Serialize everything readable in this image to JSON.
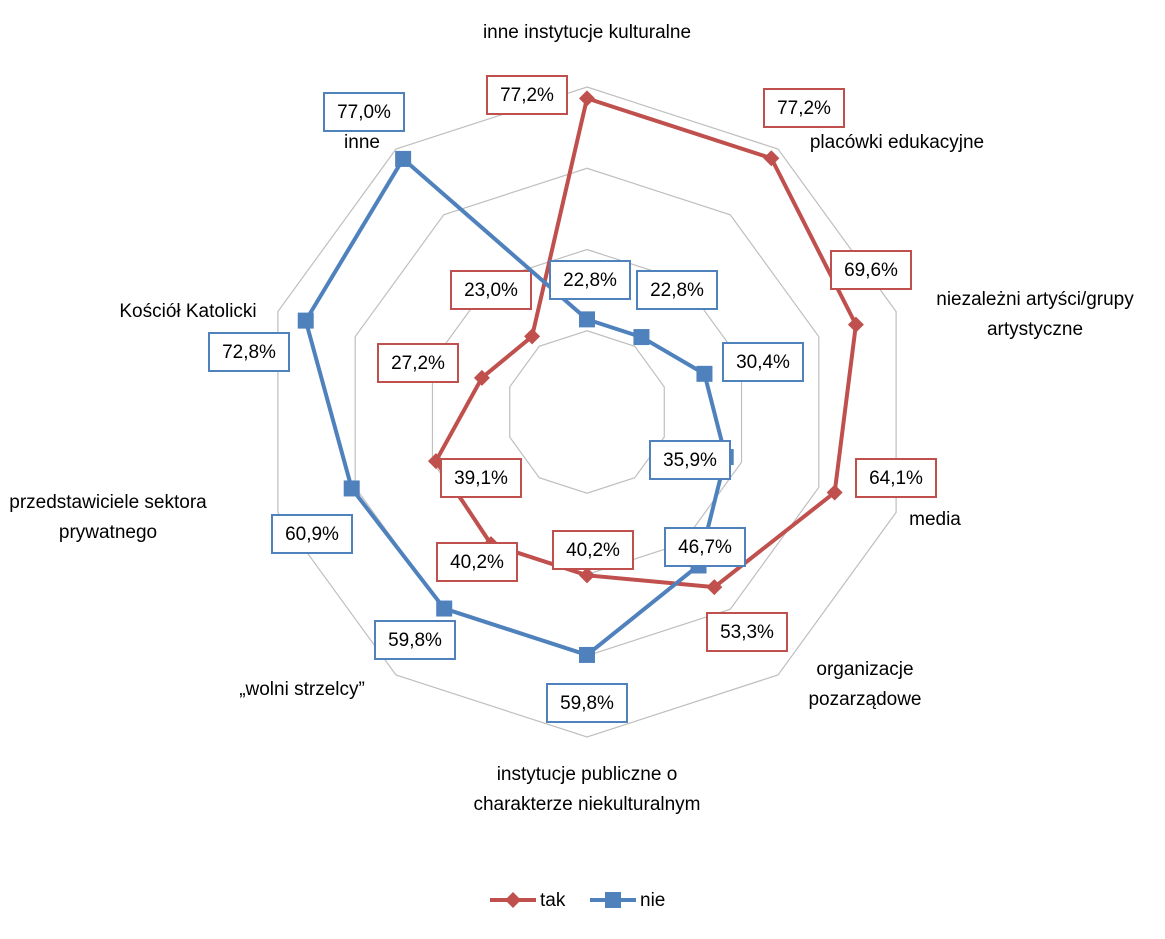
{
  "chart_data": {
    "type": "radar",
    "categories": [
      "inne instytucje kulturalne",
      "placówki edukacyjne",
      "niezależni artyści/grupy artystyczne",
      "media",
      "organizacje pozarządowe",
      "instytucje publiczne o charakterze niekulturalnym",
      "„wolni strzelcy”",
      "przedstawiciele sektora prywatnego",
      "Kościół Katolicki",
      "inne"
    ],
    "series": [
      {
        "name": "tak",
        "color": "#c0504d",
        "marker": "diamond",
        "values": [
          77.2,
          77.2,
          69.6,
          64.1,
          53.3,
          40.2,
          40.2,
          39.1,
          27.2,
          23.0
        ],
        "value_labels": [
          "77,2%",
          "77,2%",
          "69,6%",
          "64,1%",
          "53,3%",
          "40,2%",
          "40,2%",
          "39,1%",
          "27,2%",
          "23,0%"
        ]
      },
      {
        "name": "nie",
        "color": "#4f81bd",
        "marker": "square",
        "values": [
          22.8,
          22.8,
          30.4,
          35.9,
          46.7,
          59.8,
          59.8,
          60.9,
          72.8,
          77.0
        ],
        "value_labels": [
          "22,8%",
          "22,8%",
          "30,4%",
          "35,9%",
          "46,7%",
          "59,8%",
          "59,8%",
          "60,9%",
          "72,8%",
          "77,0%"
        ]
      }
    ],
    "ylim": [
      0,
      80
    ],
    "yticks": [
      0,
      20,
      40,
      60,
      80
    ],
    "grid": true,
    "legend": "bottom"
  }
}
